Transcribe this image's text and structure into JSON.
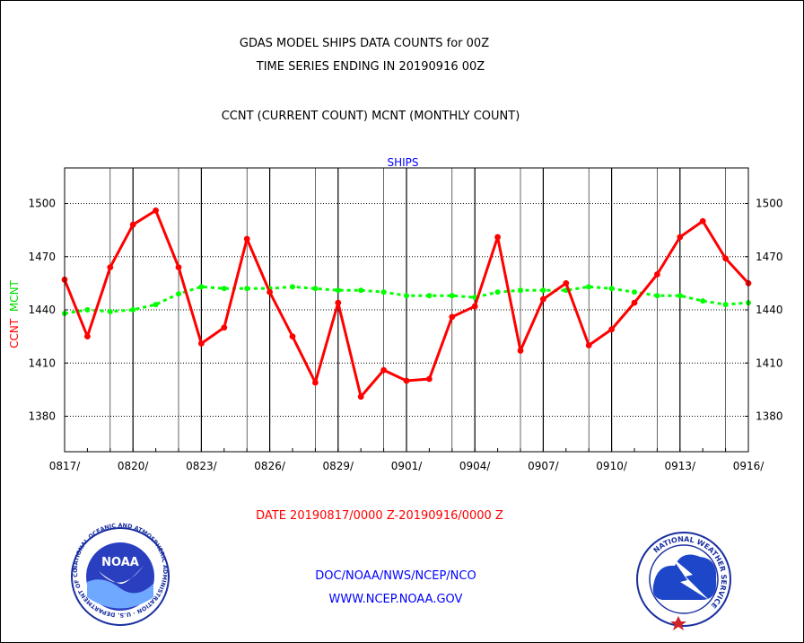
{
  "header": {
    "title_line1": "GDAS MODEL SHIPS DATA COUNTS for 00Z",
    "title_line2": "TIME SERIES ENDING IN 20190916 00Z",
    "subtitle": "CCNT (CURRENT COUNT) MCNT (MONTHLY COUNT)"
  },
  "colors": {
    "ccnt": "#ff0000",
    "mcnt": "#00ff00",
    "series_label": "#0000ff",
    "axes": "#000000",
    "background": "#ffffff"
  },
  "chart_data": {
    "type": "line",
    "title": "SHIPS",
    "ylabel": "CCNT  MCNT",
    "ylim": [
      1360,
      1520
    ],
    "yticks": [
      1380,
      1410,
      1440,
      1470,
      1500
    ],
    "ytick_labels": [
      "1380",
      "1410",
      "1440",
      "1470",
      "1500"
    ],
    "xlim": [
      0,
      30
    ],
    "xticks": [
      0,
      3,
      6,
      9,
      12,
      15,
      18,
      21,
      24,
      27,
      30
    ],
    "xtick_labels": [
      "0817/",
      "0820/",
      "0823/",
      "0826/",
      "0829/",
      "0901/",
      "0904/",
      "0907/",
      "0910/",
      "0913/",
      "0916/"
    ],
    "vgrid_solid": [
      3,
      6,
      9,
      12,
      15,
      18,
      21,
      24,
      27
    ],
    "vgrid_thin": [
      2,
      5,
      8,
      11,
      14,
      17,
      20,
      23,
      26,
      29
    ],
    "grid": true,
    "series": [
      {
        "name": "CCNT",
        "color": "#ff0000",
        "values": [
          1457,
          1425,
          1464,
          1488,
          1496,
          1464,
          1421,
          1430,
          1480,
          1450,
          1425,
          1399,
          1444,
          1391,
          1406,
          1400,
          1401,
          1436,
          1442,
          1481,
          1417,
          1446,
          1455,
          1420,
          1429,
          1444,
          1460,
          1481,
          1490,
          1469,
          1455
        ]
      },
      {
        "name": "MCNT",
        "color": "#00ff00",
        "values": [
          1438,
          1440,
          1439,
          1440,
          1443,
          1449,
          1453,
          1452,
          1452,
          1452,
          1453,
          1452,
          1451,
          1451,
          1450,
          1448,
          1448,
          1448,
          1447,
          1450,
          1451,
          1451,
          1451,
          1453,
          1452,
          1450,
          1448,
          1448,
          1445,
          1443,
          1444
        ]
      }
    ]
  },
  "footer": {
    "date_range": "DATE 20190817/0000 Z-20190916/0000 Z",
    "org_line1": "DOC/NOAA/NWS/NCEP/NCO",
    "org_line2": "WWW.NCEP.NOAA.GOV"
  },
  "logos": {
    "noaa_text": "NOAA",
    "noaa_ring_text": "NATIONAL OCEANIC AND ATMOSPHERIC ADMINISTRATION · U.S. DEPARTMENT OF COMMERCE ·",
    "nws_ring_text": "NATIONAL WEATHER SERVICE"
  }
}
